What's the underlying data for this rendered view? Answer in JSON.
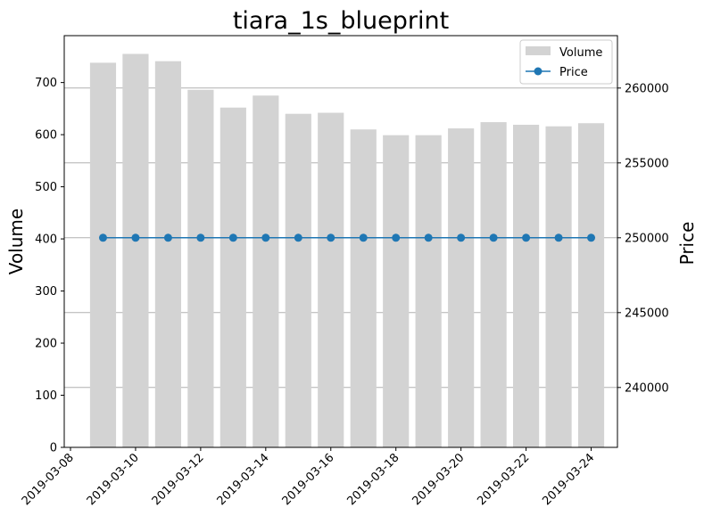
{
  "chart_data": {
    "type": "bar",
    "title": "tiara_1s_blueprint",
    "x": [
      "2019-03-09",
      "2019-03-10",
      "2019-03-11",
      "2019-03-12",
      "2019-03-13",
      "2019-03-14",
      "2019-03-15",
      "2019-03-16",
      "2019-03-17",
      "2019-03-18",
      "2019-03-19",
      "2019-03-20",
      "2019-03-21",
      "2019-03-22",
      "2019-03-23",
      "2019-03-24"
    ],
    "xtick_labels": [
      "2019-03-08",
      "2019-03-10",
      "2019-03-12",
      "2019-03-14",
      "2019-03-16",
      "2019-03-18",
      "2019-03-20",
      "2019-03-22",
      "2019-03-24"
    ],
    "xlim": [
      "2019-03-08",
      "2019-03-25"
    ],
    "ylabel": "Volume",
    "y2label": "Price",
    "ylim": [
      0,
      790
    ],
    "y2lim": [
      236000,
      263500
    ],
    "yticks": [
      0,
      100,
      200,
      300,
      400,
      500,
      600,
      700
    ],
    "y2ticks": [
      240000,
      245000,
      250000,
      255000,
      260000
    ],
    "series": [
      {
        "name": "Volume",
        "type": "bar",
        "axis": "left",
        "color": "#d3d3d3",
        "values": [
          738,
          755,
          741,
          686,
          652,
          675,
          640,
          642,
          610,
          599,
          599,
          612,
          624,
          619,
          616,
          622
        ]
      },
      {
        "name": "Price",
        "type": "line",
        "axis": "right",
        "color": "#1f77b4",
        "marker": "circle",
        "values": [
          250000,
          250000,
          250000,
          250000,
          250000,
          250000,
          250000,
          250000,
          250000,
          250000,
          250000,
          250000,
          250000,
          250000,
          250000,
          250000
        ]
      }
    ],
    "grid": "horizontal, right axis",
    "legend_position": "top-right"
  }
}
